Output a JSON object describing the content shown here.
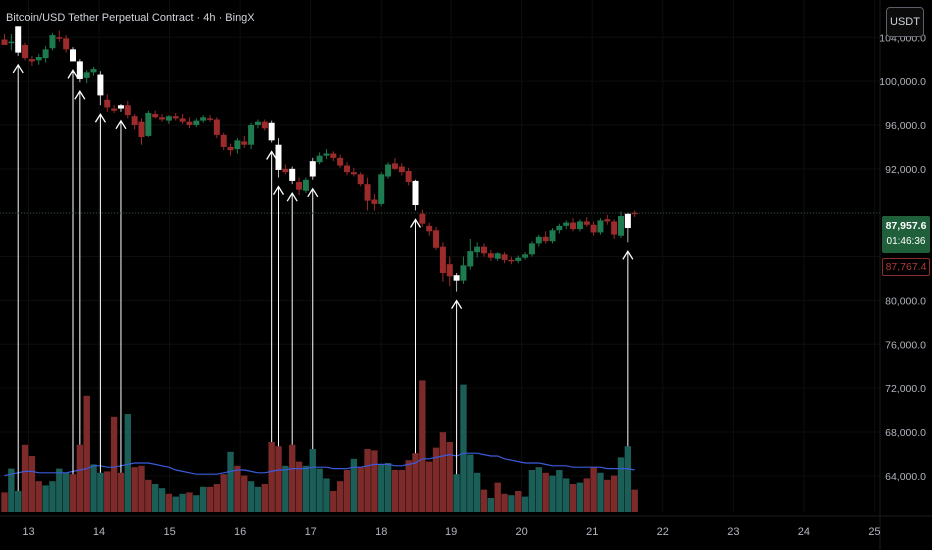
{
  "header": {
    "title": "Bitcoin/USD Tether Perpetual Contract · 4h · BingX",
    "currency": "USDT"
  },
  "price_tags": {
    "last_price": "87,957.6",
    "countdown": "01:46:36",
    "low_price": "87,767.4"
  },
  "colors": {
    "up": "#1e7a4f",
    "down": "#9e2b2b",
    "vol_up": "#1b5e57",
    "vol_down": "#7c2a2a",
    "highlight": "#ffffff",
    "ma_line": "#3b5bdb",
    "arrow": "#ffffff",
    "background": "#000000"
  },
  "chart_data": {
    "type": "candlestick",
    "title": "Bitcoin/USD Tether Perpetual Contract · 4h · BingX",
    "y_axis": {
      "ticks": [
        64000,
        68000,
        72000,
        76000,
        80000,
        84000,
        88000,
        92000,
        96000,
        100000,
        104000
      ],
      "tick_labels": [
        "64,000.0",
        "68,000.0",
        "72,000.0",
        "76,000.0",
        "80,000.0",
        "",
        "",
        "92,000.0",
        "96,000.0",
        "100,000.0",
        "104,000.0"
      ],
      "range": [
        60700,
        107400
      ]
    },
    "x_axis": {
      "tick_labels": [
        "13",
        "14",
        "15",
        "16",
        "17",
        "18",
        "19",
        "20",
        "21",
        "22",
        "23",
        "24",
        "25"
      ],
      "tick_index": [
        3.5,
        13.8,
        24.1,
        34.4,
        44.7,
        55.0,
        65.2,
        75.5,
        85.8,
        96.1,
        106.4,
        116.7,
        127.0
      ]
    },
    "candles": [
      {
        "o": 103800,
        "h": 104300,
        "l": 103300,
        "c": 103300
      },
      {
        "o": 103500,
        "h": 104300,
        "l": 102800,
        "c": 103600
      },
      {
        "o": 102600,
        "h": 105000,
        "l": 102300,
        "c": 105000,
        "hl": true
      },
      {
        "o": 103300,
        "h": 103500,
        "l": 101900,
        "c": 102100
      },
      {
        "o": 102000,
        "h": 102300,
        "l": 101400,
        "c": 101800
      },
      {
        "o": 101900,
        "h": 102500,
        "l": 101500,
        "c": 102200
      },
      {
        "o": 102100,
        "h": 103200,
        "l": 101700,
        "c": 102900
      },
      {
        "o": 103000,
        "h": 104400,
        "l": 102800,
        "c": 104200
      },
      {
        "o": 104000,
        "h": 104600,
        "l": 103600,
        "c": 103900
      },
      {
        "o": 103900,
        "h": 104200,
        "l": 102600,
        "c": 102900
      },
      {
        "o": 102900,
        "h": 103100,
        "l": 101800,
        "c": 101800,
        "hl": true
      },
      {
        "o": 101800,
        "h": 102000,
        "l": 99900,
        "c": 100200,
        "hl": true
      },
      {
        "o": 100300,
        "h": 101000,
        "l": 99800,
        "c": 100800
      },
      {
        "o": 100800,
        "h": 101300,
        "l": 100500,
        "c": 101100
      },
      {
        "o": 100600,
        "h": 100900,
        "l": 97800,
        "c": 98700,
        "hl": true
      },
      {
        "o": 98300,
        "h": 98800,
        "l": 97200,
        "c": 97600
      },
      {
        "o": 97500,
        "h": 97800,
        "l": 97100,
        "c": 97300
      },
      {
        "o": 97500,
        "h": 97900,
        "l": 97200,
        "c": 97800,
        "hl": true
      },
      {
        "o": 97800,
        "h": 98200,
        "l": 96600,
        "c": 96900
      },
      {
        "o": 96800,
        "h": 97000,
        "l": 95600,
        "c": 96000
      },
      {
        "o": 96300,
        "h": 96600,
        "l": 94200,
        "c": 94900
      },
      {
        "o": 95000,
        "h": 97300,
        "l": 94900,
        "c": 97100
      },
      {
        "o": 97000,
        "h": 97300,
        "l": 96600,
        "c": 96700
      },
      {
        "o": 96700,
        "h": 97000,
        "l": 96300,
        "c": 96500
      },
      {
        "o": 96400,
        "h": 96900,
        "l": 96100,
        "c": 96800
      },
      {
        "o": 96800,
        "h": 97100,
        "l": 96400,
        "c": 96600
      },
      {
        "o": 96600,
        "h": 97000,
        "l": 96100,
        "c": 96300
      },
      {
        "o": 96300,
        "h": 96700,
        "l": 95700,
        "c": 96000
      },
      {
        "o": 96000,
        "h": 96600,
        "l": 95800,
        "c": 96400
      },
      {
        "o": 96400,
        "h": 96900,
        "l": 96200,
        "c": 96700
      },
      {
        "o": 96600,
        "h": 96900,
        "l": 96300,
        "c": 96500
      },
      {
        "o": 96500,
        "h": 96700,
        "l": 94800,
        "c": 95100
      },
      {
        "o": 95100,
        "h": 95300,
        "l": 93700,
        "c": 94000
      },
      {
        "o": 94000,
        "h": 94300,
        "l": 93200,
        "c": 93700
      },
      {
        "o": 93800,
        "h": 94800,
        "l": 93400,
        "c": 94600
      },
      {
        "o": 94500,
        "h": 95000,
        "l": 93900,
        "c": 94200
      },
      {
        "o": 94200,
        "h": 96200,
        "l": 93800,
        "c": 96000
      },
      {
        "o": 96000,
        "h": 96500,
        "l": 95700,
        "c": 96300
      },
      {
        "o": 96300,
        "h": 96500,
        "l": 95500,
        "c": 95700
      },
      {
        "o": 96200,
        "h": 96400,
        "l": 94400,
        "c": 94600,
        "hl": true
      },
      {
        "o": 94200,
        "h": 94800,
        "l": 91200,
        "c": 91900,
        "hl": true
      },
      {
        "o": 92000,
        "h": 92400,
        "l": 91500,
        "c": 91700
      },
      {
        "o": 92000,
        "h": 92200,
        "l": 90600,
        "c": 90900,
        "hl": true
      },
      {
        "o": 90800,
        "h": 91200,
        "l": 89600,
        "c": 90100
      },
      {
        "o": 90000,
        "h": 91200,
        "l": 89800,
        "c": 91000
      },
      {
        "o": 91300,
        "h": 93000,
        "l": 91000,
        "c": 92700,
        "hl": true
      },
      {
        "o": 92600,
        "h": 93500,
        "l": 92400,
        "c": 93200
      },
      {
        "o": 93200,
        "h": 93800,
        "l": 92900,
        "c": 93400
      },
      {
        "o": 93400,
        "h": 93600,
        "l": 92700,
        "c": 93000
      },
      {
        "o": 93000,
        "h": 93300,
        "l": 92100,
        "c": 92300
      },
      {
        "o": 92300,
        "h": 92600,
        "l": 91400,
        "c": 91700
      },
      {
        "o": 91700,
        "h": 92100,
        "l": 91300,
        "c": 91500
      },
      {
        "o": 91500,
        "h": 91700,
        "l": 90400,
        "c": 90600
      },
      {
        "o": 90600,
        "h": 91200,
        "l": 88200,
        "c": 89100
      },
      {
        "o": 89200,
        "h": 89700,
        "l": 88200,
        "c": 88800
      },
      {
        "o": 88800,
        "h": 91700,
        "l": 88600,
        "c": 91500
      },
      {
        "o": 91300,
        "h": 92600,
        "l": 91100,
        "c": 92400
      },
      {
        "o": 92500,
        "h": 93000,
        "l": 91900,
        "c": 92000
      },
      {
        "o": 92200,
        "h": 92500,
        "l": 91400,
        "c": 91700
      },
      {
        "o": 91800,
        "h": 92100,
        "l": 90500,
        "c": 90800
      },
      {
        "o": 90900,
        "h": 91000,
        "l": 88200,
        "c": 88700,
        "hl": true
      },
      {
        "o": 87900,
        "h": 88300,
        "l": 86700,
        "c": 87000
      },
      {
        "o": 86800,
        "h": 87100,
        "l": 85900,
        "c": 86300
      },
      {
        "o": 86400,
        "h": 86700,
        "l": 84600,
        "c": 84800
      },
      {
        "o": 84900,
        "h": 85300,
        "l": 81700,
        "c": 82500
      },
      {
        "o": 83300,
        "h": 84000,
        "l": 81300,
        "c": 82200
      },
      {
        "o": 82300,
        "h": 82500,
        "l": 80800,
        "c": 81800,
        "hl": true
      },
      {
        "o": 81800,
        "h": 84000,
        "l": 81500,
        "c": 83200
      },
      {
        "o": 83100,
        "h": 85600,
        "l": 82800,
        "c": 84500
      },
      {
        "o": 84400,
        "h": 85300,
        "l": 83900,
        "c": 84900
      },
      {
        "o": 84900,
        "h": 85200,
        "l": 84000,
        "c": 84300
      },
      {
        "o": 84300,
        "h": 84600,
        "l": 83600,
        "c": 83900
      },
      {
        "o": 83800,
        "h": 84400,
        "l": 83600,
        "c": 84300
      },
      {
        "o": 84200,
        "h": 84400,
        "l": 83400,
        "c": 83700
      },
      {
        "o": 83700,
        "h": 84000,
        "l": 83300,
        "c": 83600
      },
      {
        "o": 83600,
        "h": 84100,
        "l": 83400,
        "c": 83900
      },
      {
        "o": 83900,
        "h": 84400,
        "l": 83700,
        "c": 84200
      },
      {
        "o": 84200,
        "h": 85400,
        "l": 84000,
        "c": 85200
      },
      {
        "o": 85200,
        "h": 86000,
        "l": 84900,
        "c": 85800
      },
      {
        "o": 85800,
        "h": 86300,
        "l": 85200,
        "c": 85400
      },
      {
        "o": 85400,
        "h": 86600,
        "l": 85200,
        "c": 86400
      },
      {
        "o": 86400,
        "h": 87000,
        "l": 86100,
        "c": 86800
      },
      {
        "o": 86800,
        "h": 87300,
        "l": 86500,
        "c": 87100
      },
      {
        "o": 87100,
        "h": 87500,
        "l": 86300,
        "c": 86500
      },
      {
        "o": 86500,
        "h": 87400,
        "l": 86300,
        "c": 87200
      },
      {
        "o": 87200,
        "h": 87600,
        "l": 86700,
        "c": 86900
      },
      {
        "o": 86900,
        "h": 87200,
        "l": 85900,
        "c": 86200
      },
      {
        "o": 86200,
        "h": 87500,
        "l": 86000,
        "c": 87300
      },
      {
        "o": 87400,
        "h": 87800,
        "l": 86900,
        "c": 87200
      },
      {
        "o": 87200,
        "h": 87400,
        "l": 85600,
        "c": 86000
      },
      {
        "o": 85900,
        "h": 88100,
        "l": 85700,
        "c": 87700
      },
      {
        "o": 86600,
        "h": 88000,
        "l": 85300,
        "c": 87900,
        "hl": true
      },
      {
        "o": 88000,
        "h": 88200,
        "l": 87600,
        "c": 87957.6
      }
    ],
    "volume_bars": [
      {
        "v": 0.14,
        "d": true
      },
      {
        "v": 0.31,
        "d": false
      },
      {
        "v": 0.15,
        "d": false
      },
      {
        "v": 0.48,
        "d": true
      },
      {
        "v": 0.4,
        "d": true
      },
      {
        "v": 0.22,
        "d": true
      },
      {
        "v": 0.19,
        "d": false
      },
      {
        "v": 0.22,
        "d": false
      },
      {
        "v": 0.31,
        "d": false
      },
      {
        "v": 0.28,
        "d": false
      },
      {
        "v": 0.27,
        "d": true
      },
      {
        "v": 0.48,
        "d": true
      },
      {
        "v": 0.83,
        "d": true
      },
      {
        "v": 0.34,
        "d": false
      },
      {
        "v": 0.28,
        "d": false
      },
      {
        "v": 0.29,
        "d": true
      },
      {
        "v": 0.68,
        "d": true
      },
      {
        "v": 0.28,
        "d": true
      },
      {
        "v": 0.7,
        "d": false
      },
      {
        "v": 0.32,
        "d": true
      },
      {
        "v": 0.33,
        "d": true
      },
      {
        "v": 0.23,
        "d": true
      },
      {
        "v": 0.2,
        "d": false
      },
      {
        "v": 0.17,
        "d": false
      },
      {
        "v": 0.13,
        "d": true
      },
      {
        "v": 0.11,
        "d": false
      },
      {
        "v": 0.13,
        "d": false
      },
      {
        "v": 0.14,
        "d": true
      },
      {
        "v": 0.12,
        "d": false
      },
      {
        "v": 0.18,
        "d": false
      },
      {
        "v": 0.18,
        "d": true
      },
      {
        "v": 0.2,
        "d": true
      },
      {
        "v": 0.27,
        "d": true
      },
      {
        "v": 0.43,
        "d": false
      },
      {
        "v": 0.33,
        "d": true
      },
      {
        "v": 0.26,
        "d": true
      },
      {
        "v": 0.22,
        "d": false
      },
      {
        "v": 0.18,
        "d": false
      },
      {
        "v": 0.2,
        "d": true
      },
      {
        "v": 0.5,
        "d": true
      },
      {
        "v": 0.47,
        "d": true
      },
      {
        "v": 0.33,
        "d": false
      },
      {
        "v": 0.48,
        "d": true
      },
      {
        "v": 0.36,
        "d": true
      },
      {
        "v": 0.33,
        "d": false
      },
      {
        "v": 0.45,
        "d": false
      },
      {
        "v": 0.31,
        "d": false
      },
      {
        "v": 0.24,
        "d": false
      },
      {
        "v": 0.15,
        "d": true
      },
      {
        "v": 0.22,
        "d": true
      },
      {
        "v": 0.3,
        "d": true
      },
      {
        "v": 0.38,
        "d": false
      },
      {
        "v": 0.32,
        "d": true
      },
      {
        "v": 0.45,
        "d": true
      },
      {
        "v": 0.44,
        "d": true
      },
      {
        "v": 0.34,
        "d": false
      },
      {
        "v": 0.35,
        "d": false
      },
      {
        "v": 0.3,
        "d": true
      },
      {
        "v": 0.3,
        "d": true
      },
      {
        "v": 0.37,
        "d": true
      },
      {
        "v": 0.42,
        "d": true
      },
      {
        "v": 0.94,
        "d": true
      },
      {
        "v": 0.36,
        "d": true
      },
      {
        "v": 0.46,
        "d": true
      },
      {
        "v": 0.57,
        "d": true
      },
      {
        "v": 0.5,
        "d": true
      },
      {
        "v": 0.27,
        "d": false
      },
      {
        "v": 0.91,
        "d": false
      },
      {
        "v": 0.41,
        "d": false
      },
      {
        "v": 0.28,
        "d": false
      },
      {
        "v": 0.16,
        "d": true
      },
      {
        "v": 0.1,
        "d": false
      },
      {
        "v": 0.21,
        "d": true
      },
      {
        "v": 0.13,
        "d": true
      },
      {
        "v": 0.12,
        "d": false
      },
      {
        "v": 0.15,
        "d": true
      },
      {
        "v": 0.11,
        "d": false
      },
      {
        "v": 0.3,
        "d": false
      },
      {
        "v": 0.32,
        "d": false
      },
      {
        "v": 0.28,
        "d": true
      },
      {
        "v": 0.26,
        "d": false
      },
      {
        "v": 0.3,
        "d": false
      },
      {
        "v": 0.24,
        "d": false
      },
      {
        "v": 0.2,
        "d": true
      },
      {
        "v": 0.21,
        "d": false
      },
      {
        "v": 0.24,
        "d": true
      },
      {
        "v": 0.32,
        "d": true
      },
      {
        "v": 0.28,
        "d": false
      },
      {
        "v": 0.23,
        "d": true
      },
      {
        "v": 0.26,
        "d": true
      },
      {
        "v": 0.39,
        "d": false
      },
      {
        "v": 0.47,
        "d": false
      },
      {
        "v": 0.16,
        "d": true
      }
    ],
    "volume_ma": [
      0.26,
      0.27,
      0.28,
      0.29,
      0.29,
      0.28,
      0.28,
      0.28,
      0.28,
      0.28,
      0.29,
      0.3,
      0.31,
      0.33,
      0.33,
      0.32,
      0.32,
      0.33,
      0.34,
      0.35,
      0.35,
      0.35,
      0.34,
      0.33,
      0.32,
      0.3,
      0.29,
      0.28,
      0.27,
      0.27,
      0.27,
      0.27,
      0.28,
      0.29,
      0.3,
      0.3,
      0.29,
      0.28,
      0.28,
      0.29,
      0.3,
      0.3,
      0.31,
      0.31,
      0.31,
      0.32,
      0.32,
      0.32,
      0.31,
      0.31,
      0.31,
      0.32,
      0.32,
      0.33,
      0.34,
      0.34,
      0.34,
      0.33,
      0.33,
      0.34,
      0.35,
      0.38,
      0.38,
      0.39,
      0.4,
      0.41,
      0.4,
      0.42,
      0.42,
      0.42,
      0.41,
      0.4,
      0.4,
      0.38,
      0.37,
      0.36,
      0.35,
      0.35,
      0.35,
      0.34,
      0.33,
      0.33,
      0.33,
      0.32,
      0.32,
      0.32,
      0.32,
      0.32,
      0.31,
      0.31,
      0.31,
      0.31,
      0.3
    ]
  }
}
